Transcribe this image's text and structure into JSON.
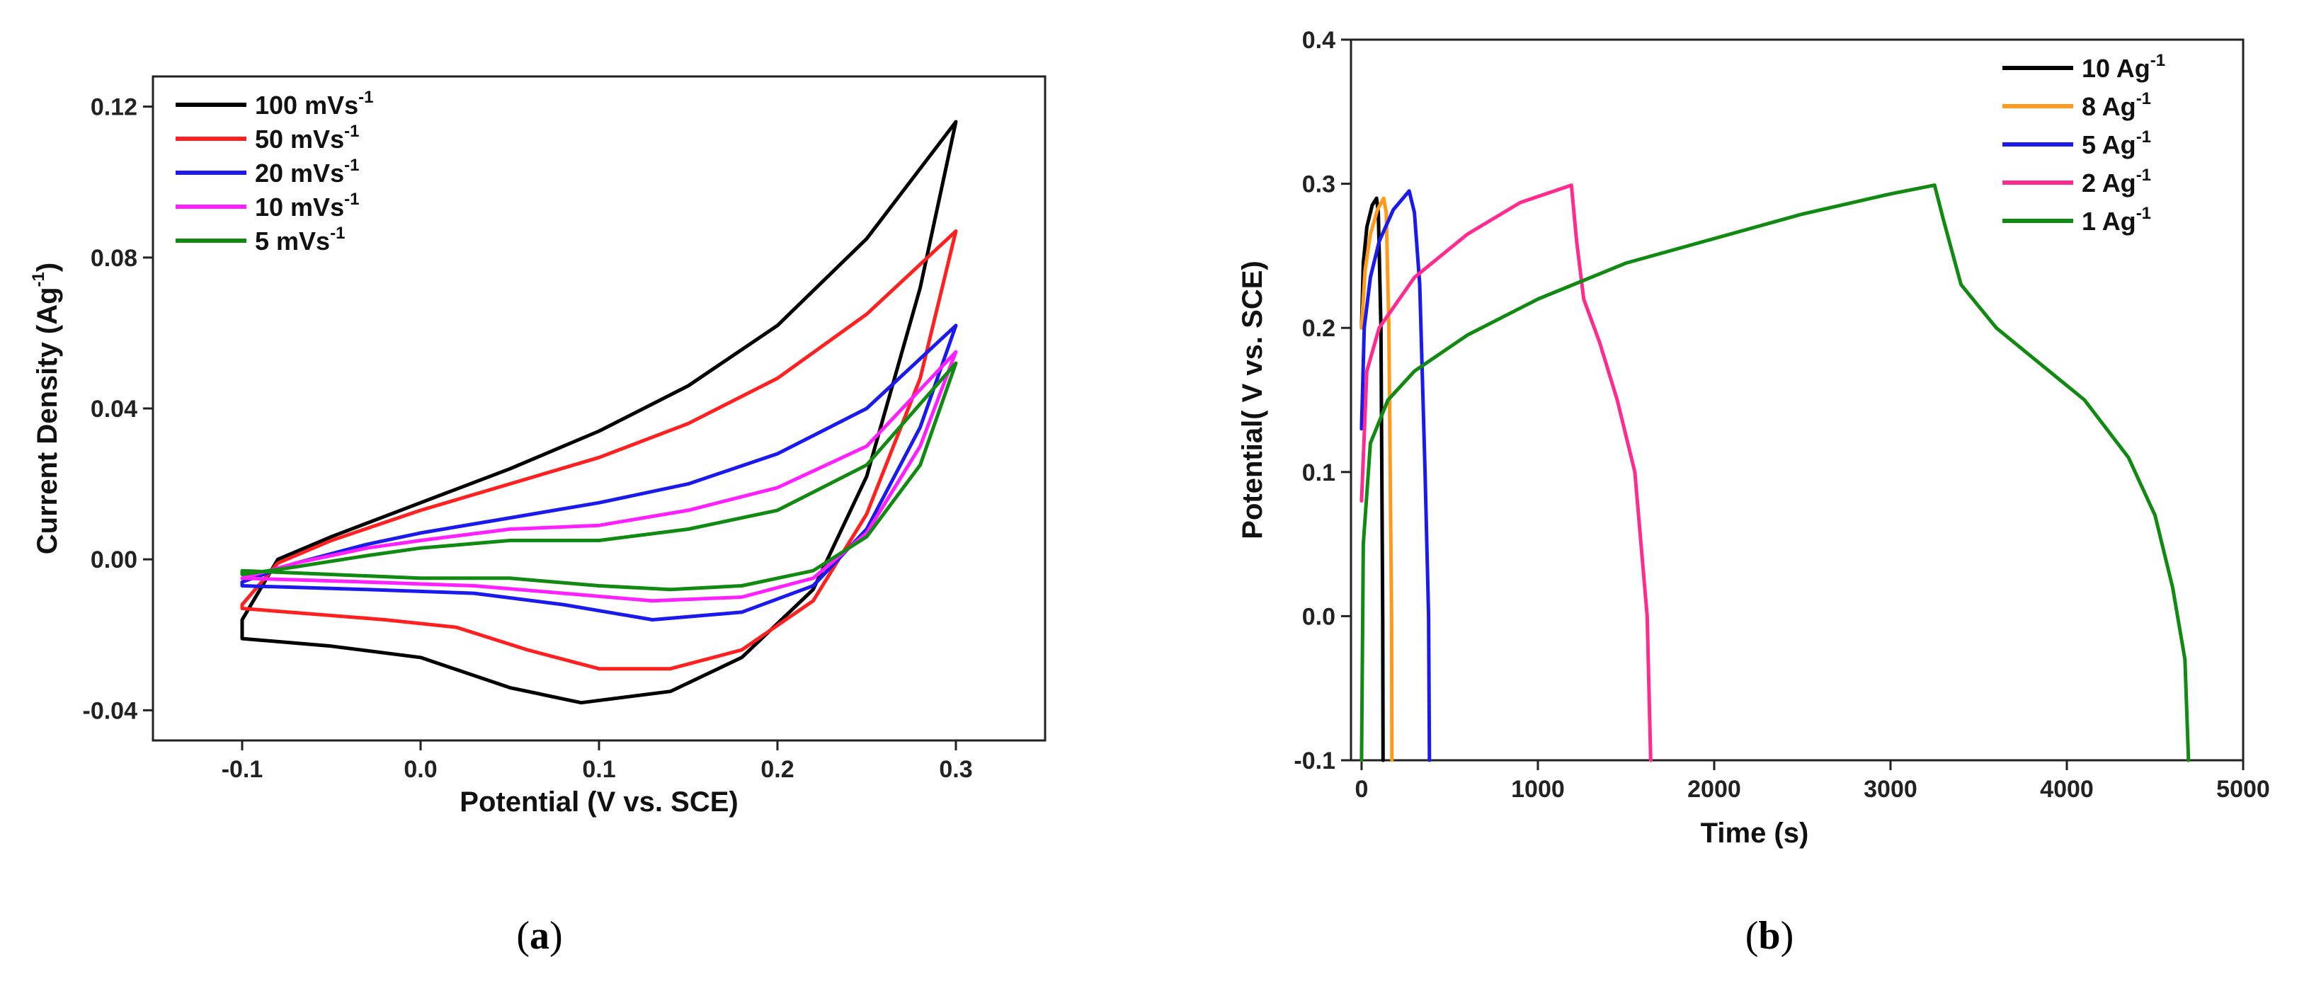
{
  "chart_data": [
    {
      "id": "a",
      "panel_label": "a",
      "type": "line",
      "title": "",
      "xlabel": "Potential (V vs. SCE)",
      "ylabel": "Current Density (Ag",
      "ylabel_sup": "-1",
      "ylabel_tail": ")",
      "xlim": [
        -0.15,
        0.35
      ],
      "ylim": [
        -0.048,
        0.128
      ],
      "xticks": [
        -0.1,
        0.0,
        0.1,
        0.2,
        0.3
      ],
      "xtick_labels": [
        "-0.1",
        "0.0",
        "0.1",
        "0.2",
        "0.3"
      ],
      "yticks": [
        -0.04,
        0.0,
        0.04,
        0.08,
        0.12
      ],
      "ytick_labels": [
        "-0.04",
        "0.00",
        "0.04",
        "0.08",
        "0.12"
      ],
      "legend_position": "top-left",
      "series": [
        {
          "name": "100 mVs",
          "sup": "-1",
          "color": "#000000",
          "upper": [
            [
              -0.1,
              -0.016
            ],
            [
              -0.08,
              0.0
            ],
            [
              -0.05,
              0.006
            ],
            [
              0.0,
              0.015
            ],
            [
              0.05,
              0.024
            ],
            [
              0.1,
              0.034
            ],
            [
              0.15,
              0.046
            ],
            [
              0.2,
              0.062
            ],
            [
              0.25,
              0.085
            ],
            [
              0.3,
              0.116
            ]
          ],
          "lower": [
            [
              0.3,
              0.116
            ],
            [
              0.28,
              0.072
            ],
            [
              0.25,
              0.022
            ],
            [
              0.22,
              -0.008
            ],
            [
              0.18,
              -0.026
            ],
            [
              0.14,
              -0.035
            ],
            [
              0.09,
              -0.038
            ],
            [
              0.05,
              -0.034
            ],
            [
              0.0,
              -0.026
            ],
            [
              -0.05,
              -0.023
            ],
            [
              -0.1,
              -0.021
            ]
          ]
        },
        {
          "name": "50 mVs",
          "sup": "-1",
          "color": "#ff2020",
          "upper": [
            [
              -0.1,
              -0.012
            ],
            [
              -0.08,
              -0.001
            ],
            [
              -0.05,
              0.005
            ],
            [
              0.0,
              0.013
            ],
            [
              0.05,
              0.02
            ],
            [
              0.1,
              0.027
            ],
            [
              0.15,
              0.036
            ],
            [
              0.2,
              0.048
            ],
            [
              0.25,
              0.065
            ],
            [
              0.3,
              0.087
            ]
          ],
          "lower": [
            [
              0.3,
              0.087
            ],
            [
              0.28,
              0.048
            ],
            [
              0.25,
              0.012
            ],
            [
              0.22,
              -0.011
            ],
            [
              0.18,
              -0.024
            ],
            [
              0.14,
              -0.029
            ],
            [
              0.1,
              -0.029
            ],
            [
              0.06,
              -0.024
            ],
            [
              0.02,
              -0.018
            ],
            [
              -0.02,
              -0.016
            ],
            [
              -0.1,
              -0.013
            ]
          ]
        },
        {
          "name": "20 mVs",
          "sup": "-1",
          "color": "#1a1aee",
          "upper": [
            [
              -0.1,
              -0.006
            ],
            [
              -0.07,
              -0.001
            ],
            [
              -0.03,
              0.004
            ],
            [
              0.0,
              0.007
            ],
            [
              0.05,
              0.011
            ],
            [
              0.1,
              0.015
            ],
            [
              0.15,
              0.02
            ],
            [
              0.2,
              0.028
            ],
            [
              0.25,
              0.04
            ],
            [
              0.3,
              0.062
            ]
          ],
          "lower": [
            [
              0.3,
              0.062
            ],
            [
              0.28,
              0.035
            ],
            [
              0.25,
              0.008
            ],
            [
              0.22,
              -0.007
            ],
            [
              0.18,
              -0.014
            ],
            [
              0.13,
              -0.016
            ],
            [
              0.08,
              -0.012
            ],
            [
              0.03,
              -0.009
            ],
            [
              -0.03,
              -0.008
            ],
            [
              -0.1,
              -0.007
            ]
          ]
        },
        {
          "name": "10 mVs",
          "sup": "-1",
          "color": "#ff20ff",
          "upper": [
            [
              -0.1,
              -0.005
            ],
            [
              -0.07,
              -0.001
            ],
            [
              -0.03,
              0.003
            ],
            [
              0.0,
              0.005
            ],
            [
              0.05,
              0.008
            ],
            [
              0.1,
              0.009
            ],
            [
              0.15,
              0.013
            ],
            [
              0.2,
              0.019
            ],
            [
              0.25,
              0.03
            ],
            [
              0.3,
              0.055
            ]
          ],
          "lower": [
            [
              0.3,
              0.055
            ],
            [
              0.28,
              0.03
            ],
            [
              0.25,
              0.007
            ],
            [
              0.22,
              -0.005
            ],
            [
              0.18,
              -0.01
            ],
            [
              0.13,
              -0.011
            ],
            [
              0.08,
              -0.009
            ],
            [
              0.03,
              -0.007
            ],
            [
              -0.03,
              -0.006
            ],
            [
              -0.1,
              -0.005
            ]
          ]
        },
        {
          "name": "5 mVs",
          "sup": "-1",
          "color": "#118a11",
          "upper": [
            [
              -0.1,
              -0.004
            ],
            [
              -0.07,
              -0.002
            ],
            [
              -0.03,
              0.001
            ],
            [
              0.0,
              0.003
            ],
            [
              0.05,
              0.005
            ],
            [
              0.1,
              0.005
            ],
            [
              0.15,
              0.008
            ],
            [
              0.2,
              0.013
            ],
            [
              0.25,
              0.025
            ],
            [
              0.3,
              0.052
            ]
          ],
          "lower": [
            [
              0.3,
              0.052
            ],
            [
              0.28,
              0.025
            ],
            [
              0.25,
              0.006
            ],
            [
              0.22,
              -0.003
            ],
            [
              0.18,
              -0.007
            ],
            [
              0.14,
              -0.008
            ],
            [
              0.1,
              -0.007
            ],
            [
              0.05,
              -0.005
            ],
            [
              0.0,
              -0.005
            ],
            [
              -0.05,
              -0.004
            ],
            [
              -0.1,
              -0.003
            ]
          ]
        }
      ]
    },
    {
      "id": "b",
      "panel_label": "b",
      "type": "line",
      "title": "",
      "xlabel": "Time (s)",
      "ylabel": "Potential( V vs. SCE)",
      "xlim": [
        -60,
        5000
      ],
      "ylim": [
        -0.1,
        0.4
      ],
      "xticks": [
        0,
        1000,
        2000,
        3000,
        4000,
        5000
      ],
      "xtick_labels": [
        "0",
        "1000",
        "2000",
        "3000",
        "4000",
        "5000"
      ],
      "yticks": [
        -0.1,
        0.0,
        0.1,
        0.2,
        0.3,
        0.4
      ],
      "ytick_labels": [
        "-0.1",
        "0.0",
        "0.1",
        "0.2",
        "0.3",
        "0.4"
      ],
      "legend_position": "top-right",
      "series": [
        {
          "name": "10  Ag",
          "sup": "-1",
          "color": "#000000",
          "points": [
            [
              0,
              0.2
            ],
            [
              10,
              0.245
            ],
            [
              30,
              0.27
            ],
            [
              60,
              0.285
            ],
            [
              85,
              0.29
            ],
            [
              95,
              0.28
            ],
            [
              110,
              0.2
            ],
            [
              120,
              0.0
            ],
            [
              122,
              -0.1
            ]
          ]
        },
        {
          "name": "8  Ag",
          "sup": "-1",
          "color": "#ff9a1a",
          "points": [
            [
              0,
              0.2
            ],
            [
              20,
              0.24
            ],
            [
              50,
              0.265
            ],
            [
              90,
              0.282
            ],
            [
              125,
              0.29
            ],
            [
              140,
              0.28
            ],
            [
              155,
              0.2
            ],
            [
              170,
              0.0
            ],
            [
              172,
              -0.1
            ]
          ]
        },
        {
          "name": "5  Ag",
          "sup": "-1",
          "color": "#1a1aee",
          "points": [
            [
              0,
              0.13
            ],
            [
              15,
              0.2
            ],
            [
              50,
              0.235
            ],
            [
              100,
              0.26
            ],
            [
              180,
              0.282
            ],
            [
              270,
              0.295
            ],
            [
              300,
              0.28
            ],
            [
              330,
              0.23
            ],
            [
              360,
              0.1
            ],
            [
              380,
              0.0
            ],
            [
              385,
              -0.1
            ]
          ]
        },
        {
          "name": "2  Ag",
          "sup": "-1",
          "color": "#ff2b8e",
          "points": [
            [
              0,
              0.08
            ],
            [
              30,
              0.17
            ],
            [
              100,
              0.2
            ],
            [
              300,
              0.235
            ],
            [
              600,
              0.265
            ],
            [
              900,
              0.287
            ],
            [
              1190,
              0.299
            ],
            [
              1220,
              0.26
            ],
            [
              1260,
              0.22
            ],
            [
              1350,
              0.19
            ],
            [
              1450,
              0.15
            ],
            [
              1550,
              0.1
            ],
            [
              1620,
              0.0
            ],
            [
              1640,
              -0.1
            ]
          ]
        },
        {
          "name": "1  Ag",
          "sup": "-1",
          "color": "#118a11",
          "points": [
            [
              0,
              -0.1
            ],
            [
              10,
              0.05
            ],
            [
              50,
              0.12
            ],
            [
              150,
              0.15
            ],
            [
              300,
              0.17
            ],
            [
              600,
              0.195
            ],
            [
              1000,
              0.22
            ],
            [
              1500,
              0.245
            ],
            [
              2000,
              0.262
            ],
            [
              2500,
              0.279
            ],
            [
              3000,
              0.293
            ],
            [
              3250,
              0.299
            ],
            [
              3300,
              0.275
            ],
            [
              3400,
              0.23
            ],
            [
              3600,
              0.2
            ],
            [
              3850,
              0.175
            ],
            [
              4100,
              0.15
            ],
            [
              4350,
              0.11
            ],
            [
              4500,
              0.07
            ],
            [
              4600,
              0.02
            ],
            [
              4670,
              -0.03
            ],
            [
              4690,
              -0.1
            ]
          ]
        }
      ]
    }
  ]
}
